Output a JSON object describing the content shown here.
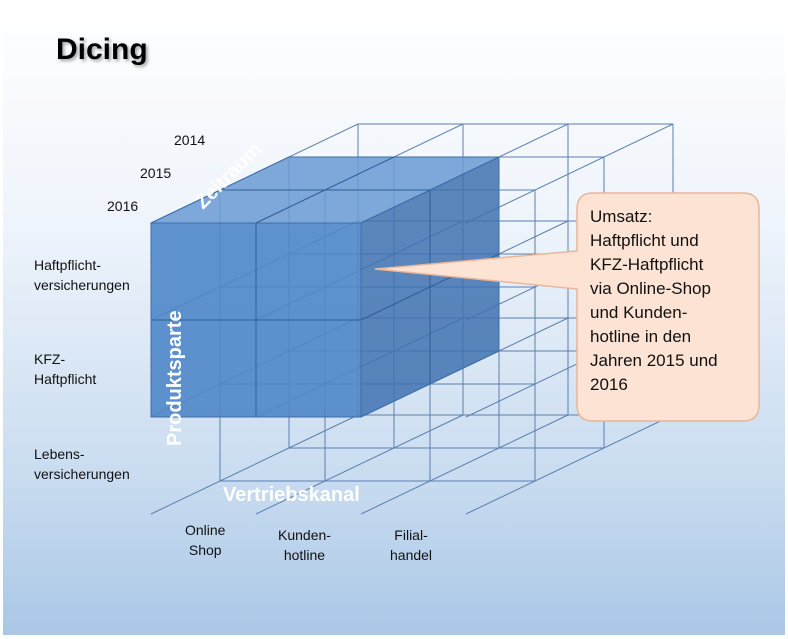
{
  "title": "Dicing",
  "axes": {
    "zeitraum": {
      "label": "Zeitraum",
      "values": [
        "2014",
        "2015",
        "2016"
      ]
    },
    "produktsparte": {
      "label": "Produktsparte",
      "values": [
        {
          "line1": "Haftpflicht-",
          "line2": "versicherungen"
        },
        {
          "line1": "KFZ-",
          "line2": "Haftpflicht"
        },
        {
          "line1": "Lebens-",
          "line2": "versicherungen"
        }
      ]
    },
    "vertriebskanal": {
      "label": "Vertriebskanal",
      "values": [
        {
          "line1": "Online",
          "line2": "Shop"
        },
        {
          "line1": "Kunden-",
          "line2": "hotline"
        },
        {
          "line1": "Filial-",
          "line2": "handel"
        }
      ]
    }
  },
  "callout": {
    "lines": [
      "Umsatz:",
      "Haftpflicht und",
      "KFZ-Haftpflicht",
      "via Online-Shop",
      "und Kunden-",
      "hotline in den",
      "Jahren 2015 und",
      "2016"
    ]
  },
  "colors": {
    "cube_lines": "#5b7fae",
    "highlight": "#4f87c9",
    "callout_fill": "#fde3d4"
  }
}
